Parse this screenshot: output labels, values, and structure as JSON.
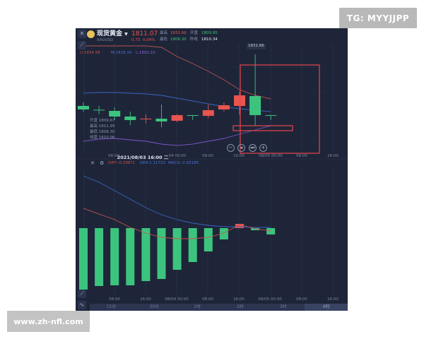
{
  "watermarks": {
    "top_right": "TG: MYYJJPP",
    "bottom_left": "www.zh-nfl.com"
  },
  "header": {
    "name": "现货黄金",
    "dropdown_icon": "caret-down-icon",
    "symbol": "XAUUSD",
    "price": "1811.07",
    "change": "0.73",
    "change_pct": "0.04%",
    "high_label": "最高",
    "high": "1831.66",
    "open_label": "开盘",
    "open": "1809.95",
    "low_label": "最低",
    "low": "1806.30",
    "prev_close_label": "昨收",
    "prev_close": "1810.34"
  },
  "boll_legend": {
    "u": "U:1834.58",
    "m": "M:1818.34",
    "l": "L:1802.10"
  },
  "ohlc_tooltip": [
    {
      "label": "开盘",
      "value": "1809.67"
    },
    {
      "label": "最高",
      "value": "1811.99"
    },
    {
      "label": "最低",
      "value": "1808.30"
    },
    {
      "label": "收盘",
      "value": "1810.06"
    }
  ],
  "high_marker": "1831.66",
  "crosshair_time": "2021/08/03 16:00 二",
  "top_axis": [
    "08:00",
    "04 00:00",
    "08:00",
    "16:00",
    "08/05 00:00",
    "08:00",
    "16:00"
  ],
  "bottom_axis": [
    "08:00",
    "16:00",
    "08/04 00:00",
    "08:00",
    "16:00",
    "08/05 00:00",
    "08:00",
    "16:00"
  ],
  "macd_legend": {
    "diff": "DIFF:-0.29871",
    "dea": "DEA:1.11722",
    "macd": "MACD:-2.83185"
  },
  "periods": [
    {
      "label": "15分"
    },
    {
      "label": "30分"
    },
    {
      "label": "1时"
    },
    {
      "label": "2时"
    },
    {
      "label": "3时"
    },
    {
      "label": "4时",
      "selected": true
    }
  ],
  "colors": {
    "up": "#e8554e",
    "down": "#3cc47f",
    "bg": "#1e2538",
    "boll_upper": "#b5524e",
    "boll_mid": "#3b63c4",
    "boll_lower": "#7b55c9",
    "dif": "#c2554e",
    "dea": "#3b63c4",
    "highlight": "#e8454e"
  },
  "candles": [
    {
      "o": 1814.28,
      "h": 1815.47,
      "l": 1812.38,
      "c": 1813.09
    },
    {
      "o": 1813.0,
      "h": 1814.28,
      "l": 1811.42,
      "c": 1812.85
    },
    {
      "o": 1812.61,
      "h": 1813.8,
      "l": 1809.52,
      "c": 1810.71
    },
    {
      "o": 1810.71,
      "h": 1812.38,
      "l": 1807.85,
      "c": 1809.52
    },
    {
      "o": 1809.95,
      "h": 1811.42,
      "l": 1808.33,
      "c": 1810.0
    },
    {
      "o": 1809.99,
      "h": 1814.75,
      "l": 1807.14,
      "c": 1809.04
    },
    {
      "o": 1809.28,
      "h": 1811.6,
      "l": 1808.8,
      "c": 1811.18
    },
    {
      "o": 1811.18,
      "h": 1811.18,
      "l": 1809.52,
      "c": 1811.1
    },
    {
      "o": 1810.95,
      "h": 1814.75,
      "l": 1810.2,
      "c": 1812.85
    },
    {
      "o": 1813.09,
      "h": 1815.47,
      "l": 1812.38,
      "c": 1814.52
    },
    {
      "o": 1814.28,
      "h": 1819.04,
      "l": 1811.42,
      "c": 1817.85
    },
    {
      "o": 1817.61,
      "h": 1831.66,
      "l": 1807.61,
      "c": 1811.18
    },
    {
      "o": 1811.2,
      "h": 1811.2,
      "l": 1809.52,
      "c": 1811.07
    }
  ],
  "boll": {
    "upper": [
      1834.52,
      1834.52,
      1834.52,
      1834.52,
      1834.52,
      1834.04,
      1830.95,
      1828.57,
      1825.95,
      1823.09,
      1819.76,
      1817.85,
      1816.66
    ],
    "mid": [
      1818.56,
      1818.8,
      1818.8,
      1818.56,
      1818.33,
      1817.85,
      1816.9,
      1815.95,
      1814.99,
      1814.04,
      1813.33,
      1812.85,
      1812.38
    ],
    "lower": [
      1802.37,
      1803.09,
      1803.33,
      1802.85,
      1802.37,
      1801.42,
      1800.95,
      1801.42,
      1802.37,
      1803.33,
      1804.75,
      1806.18,
      1807.61
    ]
  },
  "macd": {
    "hist": [
      -8.7,
      -8.2,
      -8.1,
      -8.1,
      -7.5,
      -7.2,
      -5.9,
      -4.8,
      -3.3,
      -1.6,
      0.6,
      -0.3,
      -0.9
    ],
    "dif": [
      2.8,
      2.0,
      1.2,
      0.1,
      -0.7,
      -1.3,
      -1.5,
      -1.5,
      -1.3,
      -0.7,
      0.5,
      -0.1,
      -0.4
    ],
    "dea": [
      7.4,
      6.5,
      5.3,
      4.1,
      2.9,
      1.9,
      1.2,
      0.7,
      0.4,
      0.2,
      0.2,
      0.1,
      0.1
    ]
  },
  "zoom_controls": [
    "zoom-out-icon",
    "step-back-icon",
    "jump-latest-icon",
    "zoom-in-icon"
  ]
}
